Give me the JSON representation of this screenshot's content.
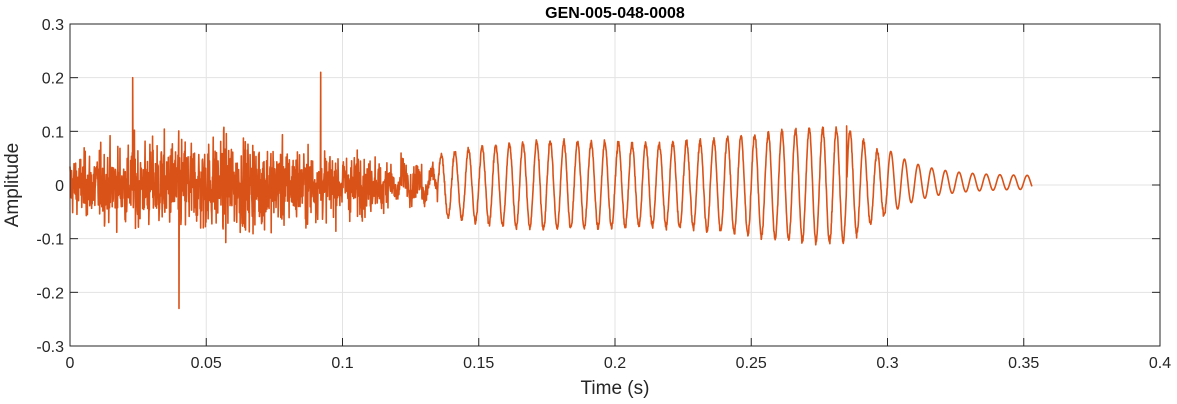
{
  "chart_data": {
    "type": "line",
    "title": "GEN-005-048-0008",
    "xlabel": "Time (s)",
    "ylabel": "Amplitude",
    "xlim": [
      0,
      0.4
    ],
    "ylim": [
      -0.3,
      0.3
    ],
    "x_ticks": [
      0,
      0.05,
      0.1,
      0.15,
      0.2,
      0.25,
      0.3,
      0.35,
      0.4
    ],
    "x_tick_labels": [
      "0",
      "0.05",
      "0.1",
      "0.15",
      "0.2",
      "0.25",
      "0.3",
      "0.35",
      "0.4"
    ],
    "y_ticks": [
      -0.3,
      -0.2,
      -0.1,
      0,
      0.1,
      0.2,
      0.3
    ],
    "y_tick_labels": [
      "-0.3",
      "-0.2",
      "-0.1",
      "0",
      "0.1",
      "0.2",
      "0.3"
    ],
    "grid": true,
    "box": true,
    "color": "#D95319",
    "series": [
      {
        "duration_s": 0.353,
        "segments": [
          {
            "t_start": 0.0,
            "t_end": 0.1,
            "kind": "noise",
            "approx_peak_pos": 0.21,
            "approx_peak_neg": -0.23,
            "typical_envelope": 0.12
          },
          {
            "t_start": 0.1,
            "t_end": 0.135,
            "kind": "noise",
            "typical_envelope": 0.05
          },
          {
            "t_start": 0.135,
            "t_end": 0.17,
            "kind": "tone",
            "approx_amplitude": 0.06
          },
          {
            "t_start": 0.17,
            "t_end": 0.3,
            "kind": "tone",
            "approx_amplitude": 0.1
          },
          {
            "t_start": 0.3,
            "t_end": 0.353,
            "kind": "decaying tone",
            "approx_amplitude": 0.02
          }
        ],
        "extrema": [
          {
            "x": 0.023,
            "y": 0.2
          },
          {
            "x": 0.04,
            "y": -0.23
          },
          {
            "x": 0.092,
            "y": 0.21
          },
          {
            "x": 0.285,
            "y": 0.11
          }
        ]
      }
    ]
  }
}
